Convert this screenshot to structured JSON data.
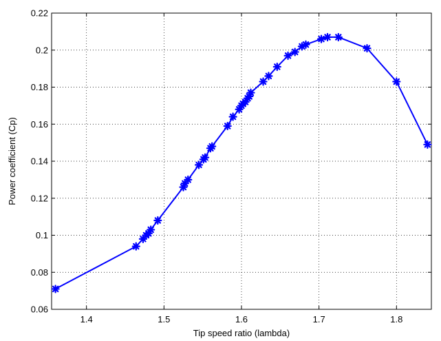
{
  "chart_data": {
    "type": "line",
    "title": "",
    "xlabel": "Tip speed ratio  (lambda)",
    "ylabel": "Power coefficient  (Cp)",
    "xlim": [
      1.355,
      1.845
    ],
    "ylim": [
      0.06,
      0.22
    ],
    "xticks": [
      "1.4",
      "1.5",
      "1.6",
      "1.7",
      "1.8"
    ],
    "yticks": [
      "0.06",
      "0.08",
      "0.1",
      "0.12",
      "0.14",
      "0.16",
      "0.18",
      "0.2",
      "0.22"
    ],
    "grid": true,
    "series": [
      {
        "color": "#0000ff",
        "marker": "asterisk",
        "x": [
          1.36,
          1.464,
          1.473,
          1.477,
          1.48,
          1.483,
          1.492,
          1.525,
          1.527,
          1.531,
          1.545,
          1.551,
          1.553,
          1.56,
          1.562,
          1.582,
          1.589,
          1.597,
          1.6,
          1.602,
          1.605,
          1.608,
          1.61,
          1.612,
          1.628,
          1.635,
          1.646,
          1.66,
          1.669,
          1.678,
          1.683,
          1.703,
          1.711,
          1.725,
          1.762,
          1.8,
          1.84
        ],
        "y": [
          0.071,
          0.094,
          0.098,
          0.1,
          0.101,
          0.103,
          0.108,
          0.126,
          0.128,
          0.13,
          0.138,
          0.141,
          0.142,
          0.147,
          0.148,
          0.159,
          0.164,
          0.168,
          0.17,
          0.171,
          0.172,
          0.174,
          0.175,
          0.177,
          0.183,
          0.186,
          0.191,
          0.197,
          0.199,
          0.202,
          0.203,
          0.206,
          0.207,
          0.207,
          0.201,
          0.183,
          0.149
        ]
      }
    ]
  }
}
